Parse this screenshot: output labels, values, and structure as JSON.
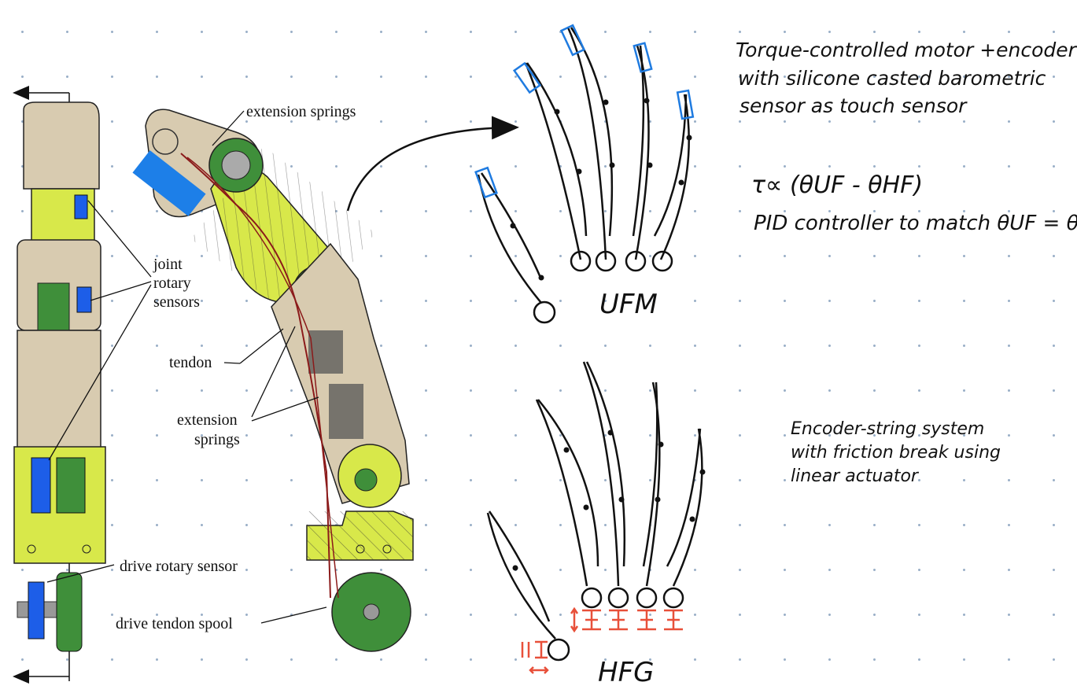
{
  "labels": {
    "extension_springs_top": "extension springs",
    "joint_line1": "joint",
    "joint_line2": "rotary",
    "joint_line3": "sensors",
    "tendon": "tendon",
    "ext_springs_mid_line1": "extension",
    "ext_springs_mid_line2": "springs",
    "drive_rotary_sensor": "drive rotary sensor",
    "drive_tendon_spool": "drive tendon spool"
  },
  "notes": {
    "ufm_line1": "Torque-controlled motor +encoder",
    "ufm_line2": "with silicone casted barometric",
    "ufm_line3": "sensor as touch sensor",
    "formula_line1": "τ∝ (θUF - θHF)",
    "formula_line2": "PID controller to match θUF = θHF",
    "hfg_line1": "Encoder-string system",
    "hfg_line2": "with friction break using",
    "hfg_line3": "linear actuator"
  },
  "diagram_titles": {
    "upper": "UFM",
    "lower": "HFG"
  },
  "colors": {
    "beige": "#d8cbb0",
    "yellow": "#d8e84a",
    "green": "#3f8f3a",
    "blue": "#1d5ee8",
    "touch_pad": "#1f7be0",
    "red_actuator": "#e8503a",
    "tendon": "#8b1a1a"
  }
}
